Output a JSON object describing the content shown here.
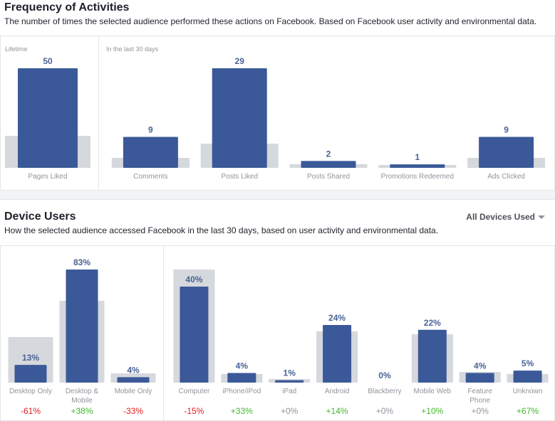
{
  "frequency": {
    "title": "Frequency of Activities",
    "subtitle": "The number of times the selected audience performed these actions on Facebook. Based on Facebook user activity and environmental data.",
    "lifetime_label": "Lifetime",
    "recent_label": "In the last 30 days"
  },
  "devices": {
    "title": "Device Users",
    "subtitle": "How the selected audience accessed Facebook in the last 30 days, based on user activity and environmental data.",
    "dropdown_label": "All Devices Used"
  },
  "colors": {
    "bar": "#3b5998",
    "benchmark": "#d5d8dc",
    "positive": "#42b72a",
    "negative": "#e02020",
    "neutral": "#90949c"
  },
  "chart_data": [
    {
      "type": "bar",
      "group": "lifetime",
      "categories": [
        "Pages Liked"
      ],
      "values": [
        50
      ],
      "value_labels": [
        "50"
      ],
      "ylim": [
        0,
        55
      ]
    },
    {
      "type": "bar",
      "group": "last_30_days",
      "categories": [
        "Comments",
        "Posts Liked",
        "Posts Shared",
        "Promotions Redeemed",
        "Ads Clicked"
      ],
      "values": [
        9,
        29,
        2,
        1,
        9
      ],
      "value_labels": [
        "9",
        "29",
        "2",
        "1",
        "9"
      ],
      "ylim": [
        0,
        32
      ]
    },
    {
      "type": "bar",
      "group": "device_platform",
      "categories": [
        "Desktop Only",
        "Desktop & Mobile",
        "Mobile Only"
      ],
      "values": [
        13,
        83,
        4
      ],
      "value_labels": [
        "13%",
        "83%",
        "4%"
      ],
      "changes": [
        "-61%",
        "+38%",
        "-33%"
      ],
      "ylim": [
        0,
        100
      ]
    },
    {
      "type": "bar",
      "group": "device_type",
      "categories": [
        "Computer",
        "iPhone/iPod",
        "iPad",
        "Android",
        "Blackberry",
        "Mobile Web",
        "Feature Phone",
        "Unknown"
      ],
      "values": [
        40,
        4,
        1,
        24,
        0,
        22,
        4,
        5
      ],
      "value_labels": [
        "40%",
        "4%",
        "1%",
        "24%",
        "0%",
        "22%",
        "4%",
        "5%"
      ],
      "changes": [
        "-15%",
        "+33%",
        "+0%",
        "+14%",
        "+0%",
        "+10%",
        "+0%",
        "+67%"
      ],
      "ylim": [
        0,
        40
      ]
    }
  ]
}
